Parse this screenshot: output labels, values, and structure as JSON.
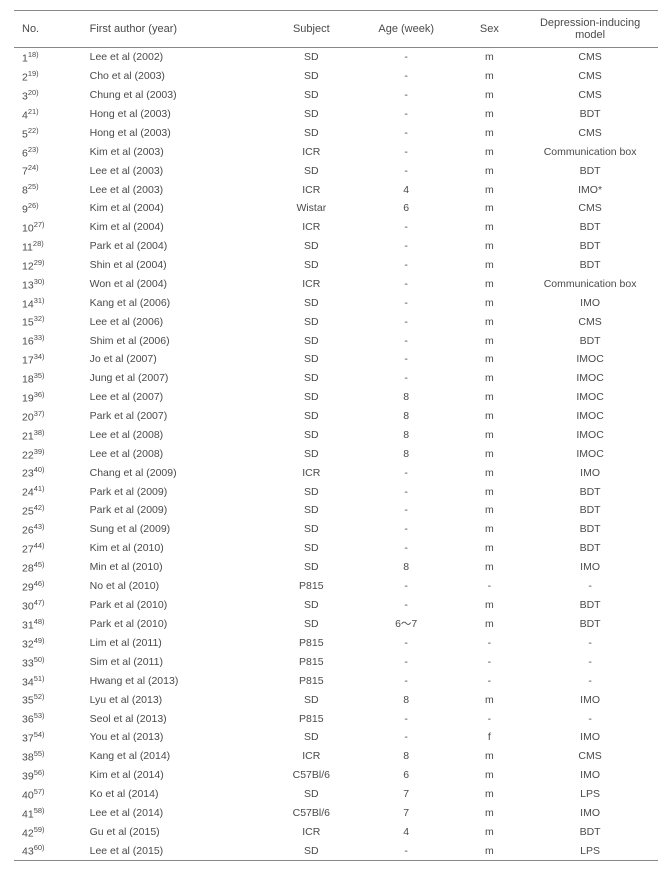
{
  "columns": [
    "No.",
    "First author (year)",
    "Subject",
    "Age (week)",
    "Sex",
    "Depression-inducing model"
  ],
  "rows": [
    {
      "n": "1",
      "ref": "18)",
      "author": "Lee et al (2002)",
      "subject": "SD",
      "age": "-",
      "sex": "m",
      "model": "CMS"
    },
    {
      "n": "2",
      "ref": "19)",
      "author": "Cho et al (2003)",
      "subject": "SD",
      "age": "-",
      "sex": "m",
      "model": "CMS"
    },
    {
      "n": "3",
      "ref": "20)",
      "author": "Chung et al (2003)",
      "subject": "SD",
      "age": "-",
      "sex": "m",
      "model": "CMS"
    },
    {
      "n": "4",
      "ref": "21)",
      "author": "Hong et al (2003)",
      "subject": "SD",
      "age": "-",
      "sex": "m",
      "model": "BDT"
    },
    {
      "n": "5",
      "ref": "22)",
      "author": "Hong et al (2003)",
      "subject": "SD",
      "age": "-",
      "sex": "m",
      "model": "CMS"
    },
    {
      "n": "6",
      "ref": "23)",
      "author": "Kim et al (2003)",
      "subject": "ICR",
      "age": "-",
      "sex": "m",
      "model": "Communication box"
    },
    {
      "n": "7",
      "ref": "24)",
      "author": "Lee et al (2003)",
      "subject": "SD",
      "age": "-",
      "sex": "m",
      "model": "BDT"
    },
    {
      "n": "8",
      "ref": "25)",
      "author": "Lee et al (2003)",
      "subject": "ICR",
      "age": "4",
      "sex": "m",
      "model": "IMO*"
    },
    {
      "n": "9",
      "ref": "26)",
      "author": "Kim et al (2004)",
      "subject": "Wistar",
      "age": "6",
      "sex": "m",
      "model": "CMS"
    },
    {
      "n": "10",
      "ref": "27)",
      "author": "Kim et al (2004)",
      "subject": "ICR",
      "age": "-",
      "sex": "m",
      "model": "BDT"
    },
    {
      "n": "11",
      "ref": "28)",
      "author": "Park et al (2004)",
      "subject": "SD",
      "age": "-",
      "sex": "m",
      "model": "BDT"
    },
    {
      "n": "12",
      "ref": "29)",
      "author": "Shin et al (2004)",
      "subject": "SD",
      "age": "-",
      "sex": "m",
      "model": "BDT"
    },
    {
      "n": "13",
      "ref": "30)",
      "author": "Won et al (2004)",
      "subject": "ICR",
      "age": "-",
      "sex": "m",
      "model": "Communication box"
    },
    {
      "n": "14",
      "ref": "31)",
      "author": "Kang et al (2006)",
      "subject": "SD",
      "age": "-",
      "sex": "m",
      "model": "IMO"
    },
    {
      "n": "15",
      "ref": "32)",
      "author": "Lee et al (2006)",
      "subject": "SD",
      "age": "-",
      "sex": "m",
      "model": "CMS"
    },
    {
      "n": "16",
      "ref": "33)",
      "author": "Shim et al (2006)",
      "subject": "SD",
      "age": "-",
      "sex": "m",
      "model": "BDT"
    },
    {
      "n": "17",
      "ref": "34)",
      "author": "Jo et al (2007)",
      "subject": "SD",
      "age": "-",
      "sex": "m",
      "model": "IMOC"
    },
    {
      "n": "18",
      "ref": "35)",
      "author": "Jung et al (2007)",
      "subject": "SD",
      "age": "-",
      "sex": "m",
      "model": "IMOC"
    },
    {
      "n": "19",
      "ref": "36)",
      "author": "Lee et al (2007)",
      "subject": "SD",
      "age": "8",
      "sex": "m",
      "model": "IMOC"
    },
    {
      "n": "20",
      "ref": "37)",
      "author": "Park et al (2007)",
      "subject": "SD",
      "age": "8",
      "sex": "m",
      "model": "IMOC"
    },
    {
      "n": "21",
      "ref": "38)",
      "author": "Lee et al (2008)",
      "subject": "SD",
      "age": "8",
      "sex": "m",
      "model": "IMOC"
    },
    {
      "n": "22",
      "ref": "39)",
      "author": "Lee et al (2008)",
      "subject": "SD",
      "age": "8",
      "sex": "m",
      "model": "IMOC"
    },
    {
      "n": "23",
      "ref": "40)",
      "author": "Chang et al (2009)",
      "subject": "ICR",
      "age": "-",
      "sex": "m",
      "model": "IMO"
    },
    {
      "n": "24",
      "ref": "41)",
      "author": "Park et al (2009)",
      "subject": "SD",
      "age": "-",
      "sex": "m",
      "model": "BDT"
    },
    {
      "n": "25",
      "ref": "42)",
      "author": "Park et al (2009)",
      "subject": "SD",
      "age": "-",
      "sex": "m",
      "model": "BDT"
    },
    {
      "n": "26",
      "ref": "43)",
      "author": "Sung et al (2009)",
      "subject": "SD",
      "age": "-",
      "sex": "m",
      "model": "BDT"
    },
    {
      "n": "27",
      "ref": "44)",
      "author": "Kim et al (2010)",
      "subject": "SD",
      "age": "-",
      "sex": "m",
      "model": "BDT"
    },
    {
      "n": "28",
      "ref": "45)",
      "author": "Min et al (2010)",
      "subject": "SD",
      "age": "8",
      "sex": "m",
      "model": "IMO"
    },
    {
      "n": "29",
      "ref": "46)",
      "author": "No et al (2010)",
      "subject": "P815",
      "age": "-",
      "sex": "-",
      "model": "-"
    },
    {
      "n": "30",
      "ref": "47)",
      "author": "Park et al (2010)",
      "subject": "SD",
      "age": "-",
      "sex": "m",
      "model": "BDT"
    },
    {
      "n": "31",
      "ref": "48)",
      "author": "Park et al (2010)",
      "subject": "SD",
      "age": "6～7",
      "sex": "m",
      "model": "BDT"
    },
    {
      "n": "32",
      "ref": "49)",
      "author": "Lim et al (2011)",
      "subject": "P815",
      "age": "-",
      "sex": "-",
      "model": "-"
    },
    {
      "n": "33",
      "ref": "50)",
      "author": "Sim et al (2011)",
      "subject": "P815",
      "age": "-",
      "sex": "-",
      "model": "-"
    },
    {
      "n": "34",
      "ref": "51)",
      "author": "Hwang et al (2013)",
      "subject": "P815",
      "age": "-",
      "sex": "-",
      "model": "-"
    },
    {
      "n": "35",
      "ref": "52)",
      "author": "Lyu et al (2013)",
      "subject": "SD",
      "age": "8",
      "sex": "m",
      "model": "IMO"
    },
    {
      "n": "36",
      "ref": "53)",
      "author": "Seol et al (2013)",
      "subject": "P815",
      "age": "-",
      "sex": "-",
      "model": "-"
    },
    {
      "n": "37",
      "ref": "54)",
      "author": "You et al (2013)",
      "subject": "SD",
      "age": "-",
      "sex": "f",
      "model": "IMO"
    },
    {
      "n": "38",
      "ref": "55)",
      "author": "Kang et al (2014)",
      "subject": "ICR",
      "age": "8",
      "sex": "m",
      "model": "CMS"
    },
    {
      "n": "39",
      "ref": "56)",
      "author": "Kim et al (2014)",
      "subject": "C57Bl/6",
      "age": "6",
      "sex": "m",
      "model": "IMO"
    },
    {
      "n": "40",
      "ref": "57)",
      "author": "Ko et al (2014)",
      "subject": "SD",
      "age": "7",
      "sex": "m",
      "model": "LPS"
    },
    {
      "n": "41",
      "ref": "58)",
      "author": "Lee et al (2014)",
      "subject": "C57Bl/6",
      "age": "7",
      "sex": "m",
      "model": "IMO"
    },
    {
      "n": "42",
      "ref": "59)",
      "author": "Gu et al (2015)",
      "subject": "ICR",
      "age": "4",
      "sex": "m",
      "model": "BDT"
    },
    {
      "n": "43",
      "ref": "60)",
      "author": "Lee et al (2015)",
      "subject": "SD",
      "age": "-",
      "sex": "m",
      "model": "LPS"
    }
  ]
}
